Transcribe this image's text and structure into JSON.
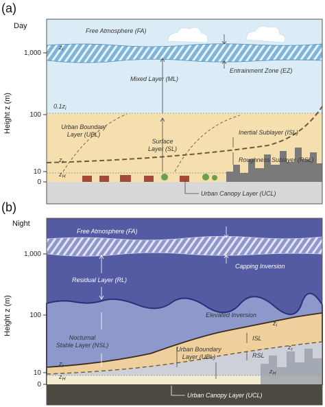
{
  "panels": [
    {
      "label": "(a)",
      "period": "Day",
      "y_axis": {
        "title": "Height z (m)",
        "ticks": [
          "1,000",
          "100",
          "10",
          "0"
        ]
      },
      "labels": {
        "free_atmosphere": "Free Atmosphere (FA)",
        "zi": {
          "symbol": "z",
          "subscript": "i"
        },
        "mixed_layer": "Mixed Layer (ML)",
        "entrainment_zone": "Entrainment Zone (EZ)",
        "zi_fraction": {
          "symbol": "0.1z",
          "subscript": "i"
        },
        "urban_boundary_layer": [
          "Urban Boundary",
          "Layer (UBL)"
        ],
        "surface_layer": [
          "Surface",
          "Layer (SL)"
        ],
        "inertial_sublayer": "Inertial Sublayer (ISL)",
        "roughness_sublayer": "Roughness Sublayer (RSL)",
        "zr": {
          "symbol": "z",
          "subscript": "r"
        },
        "zH": {
          "symbol": "z",
          "subscript": "H"
        },
        "urban_canopy_layer": "Urban Canopy Layer (UCL)"
      }
    },
    {
      "label": "(b)",
      "period": "Night",
      "y_axis": {
        "title": "Height z (m)",
        "ticks": [
          "1,000",
          "100",
          "10",
          "0"
        ]
      },
      "labels": {
        "free_atmosphere": "Free Atmosphere (FA)",
        "capping_inversion": "Capping Inversion",
        "residual_layer": "Residual Layer (RL)",
        "elevated_inversion": "Elevated Inversion",
        "nocturnal_stable_layer": [
          "Nocturnal",
          "Stable Layer (NSL)"
        ],
        "zi_right": {
          "symbol": "z",
          "subscript": "i"
        },
        "isl": "ISL",
        "zr_right": {
          "symbol": "z",
          "subscript": "r"
        },
        "urban_boundary_layer": [
          "Urban Boundary",
          "Layer (UBL)"
        ],
        "rsl": "RSL",
        "zH_right": {
          "symbol": "z",
          "subscript": "H"
        },
        "zi_left": {
          "symbol": "z",
          "subscript": "i"
        },
        "zH_left": {
          "symbol": "z",
          "subscript": "H"
        },
        "urban_canopy_layer": "Urban Canopy Layer (UCL)"
      }
    }
  ]
}
